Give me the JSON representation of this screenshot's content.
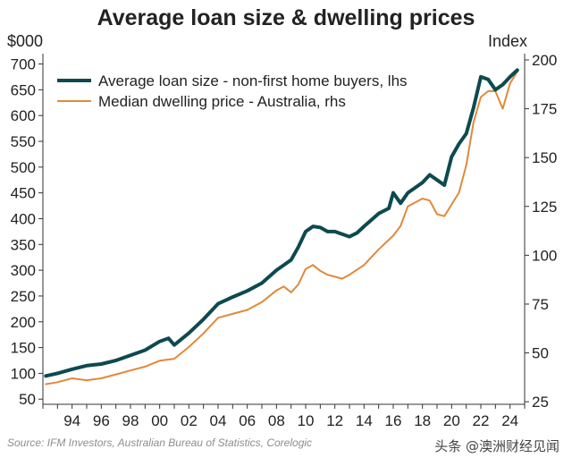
{
  "chart_data": {
    "type": "line",
    "title": "Average loan size & dwelling prices",
    "left_axis": {
      "unit": "$000",
      "ylim": [
        40,
        720
      ],
      "ticks": [
        50,
        100,
        150,
        200,
        250,
        300,
        350,
        400,
        450,
        500,
        550,
        600,
        650,
        700
      ]
    },
    "right_axis": {
      "unit": "Index",
      "ylim": [
        23.7,
        203.2
      ],
      "ticks": [
        25,
        50,
        75,
        100,
        125,
        150,
        175,
        200
      ]
    },
    "x_axis": {
      "xlim": [
        1992.0,
        2025.0
      ],
      "ticks": [
        1994,
        1996,
        1998,
        2000,
        2002,
        2004,
        2006,
        2008,
        2010,
        2012,
        2014,
        2016,
        2018,
        2020,
        2022,
        2024
      ],
      "tick_labels": [
        "94",
        "96",
        "98",
        "00",
        "02",
        "04",
        "06",
        "08",
        "10",
        "12",
        "14",
        "16",
        "18",
        "20",
        "22",
        "24"
      ]
    },
    "legend": {
      "placement": "top-left"
    },
    "grid": false,
    "series": [
      {
        "name": "Average loan size - non-first home buyers, lhs",
        "axis": "left",
        "color": "#0d4a4f",
        "x": [
          1992.2,
          1993,
          1994,
          1995,
          1996,
          1997,
          1998,
          1999,
          2000,
          2000.6,
          2001,
          2002,
          2003,
          2004,
          2005,
          2006,
          2007,
          2008,
          2008.5,
          2009,
          2009.5,
          2010,
          2010.5,
          2011,
          2011.5,
          2012,
          2012.5,
          2013,
          2013.5,
          2014,
          2015,
          2015.7,
          2016,
          2016.5,
          2017,
          2018,
          2018.5,
          2019,
          2019.5,
          2020,
          2020.5,
          2021,
          2021.5,
          2022,
          2022.5,
          2023,
          2023.5,
          2024,
          2024.5
        ],
        "y": [
          95,
          100,
          108,
          115,
          118,
          125,
          135,
          145,
          162,
          168,
          155,
          178,
          205,
          235,
          248,
          260,
          275,
          300,
          310,
          320,
          345,
          375,
          385,
          383,
          375,
          375,
          370,
          365,
          372,
          385,
          410,
          420,
          450,
          430,
          450,
          470,
          485,
          475,
          465,
          520,
          545,
          565,
          615,
          675,
          670,
          650,
          660,
          675,
          688
        ]
      },
      {
        "name": "Median dwelling price - Australia, rhs",
        "axis": "right",
        "color": "#e08a3a",
        "x": [
          1992.2,
          1993,
          1994,
          1995,
          1996,
          1997,
          1998,
          1999,
          2000,
          2001,
          2002,
          2003,
          2004,
          2005,
          2006,
          2007,
          2008,
          2008.5,
          2009,
          2009.5,
          2010,
          2010.5,
          2011,
          2011.5,
          2012,
          2012.5,
          2013,
          2014,
          2015,
          2016,
          2016.5,
          2017,
          2018,
          2018.5,
          2019,
          2019.5,
          2020,
          2020.5,
          2021,
          2021.5,
          2022,
          2022.5,
          2023,
          2023.5,
          2024,
          2024.5
        ],
        "y": [
          34,
          35,
          37,
          36,
          37,
          39,
          41,
          43,
          46,
          47,
          53,
          60,
          68,
          70,
          72,
          76,
          82,
          84,
          81,
          85,
          93,
          95,
          92,
          90,
          89,
          88,
          90,
          95,
          103,
          110,
          115,
          125,
          129,
          128,
          121,
          120,
          126,
          132,
          146,
          168,
          181,
          184,
          184,
          175,
          188,
          194
        ]
      }
    ],
    "source": "Source: IFM Investors, Australian Bureau of Statistics, Corelogic",
    "watermark": "头条 @澳洲财经见闻"
  }
}
